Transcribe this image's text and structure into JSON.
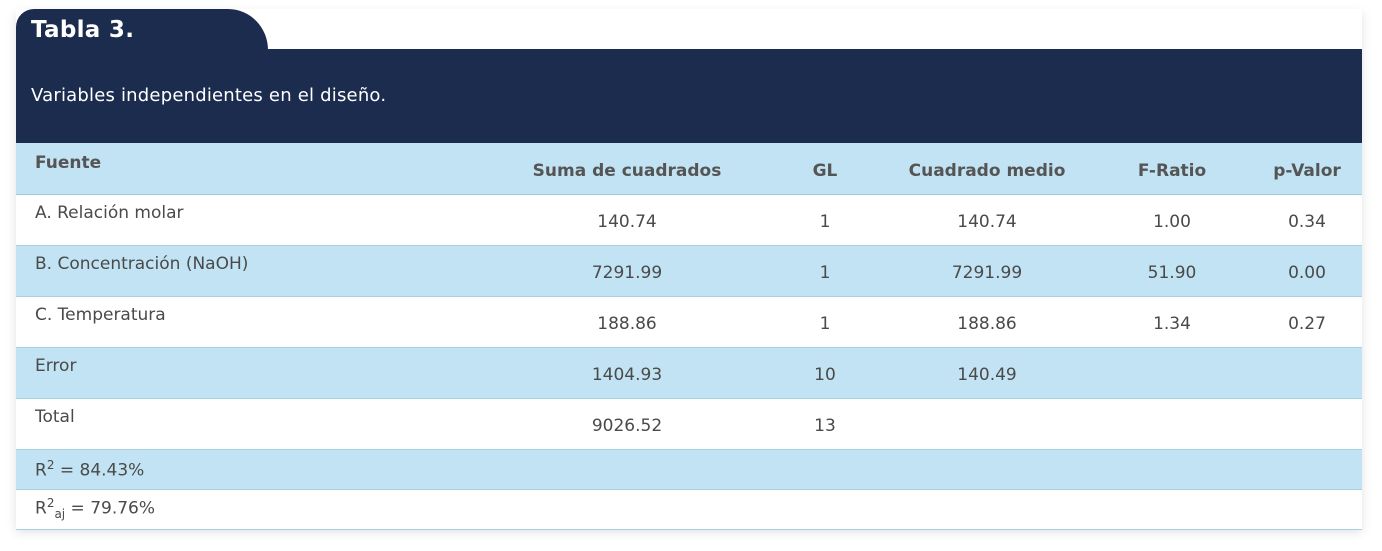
{
  "table_label": "Tabla 3.",
  "caption": "Variables independientes en el diseño.",
  "columns": [
    "Fuente",
    "Suma de cuadrados",
    "GL",
    "Cuadrado medio",
    "F-Ratio",
    "p-Valor"
  ],
  "rows": [
    {
      "fuente": "A. Relación molar",
      "suma": "140.74",
      "gl": "1",
      "cuadrado": "140.74",
      "f": "1.00",
      "p": "0.34"
    },
    {
      "fuente": "B. Concentración (NaOH)",
      "suma": "7291.99",
      "gl": "1",
      "cuadrado": "7291.99",
      "f": "51.90",
      "p": "0.00"
    },
    {
      "fuente": "C. Temperatura",
      "suma": "188.86",
      "gl": "1",
      "cuadrado": "188.86",
      "f": "1.34",
      "p": "0.27"
    },
    {
      "fuente": "Error",
      "suma": "1404.93",
      "gl": "10",
      "cuadrado": "140.49",
      "f": "",
      "p": ""
    },
    {
      "fuente": "Total",
      "suma": "9026.52",
      "gl": "13",
      "cuadrado": "",
      "f": "",
      "p": ""
    }
  ],
  "footer": {
    "r2_symbol": "R",
    "r2_sup": "2",
    "r2_value": " = 84.43%",
    "r2aj_symbol": "R",
    "r2aj_sup": "2",
    "r2aj_sub": "aj",
    "r2aj_value": " = 79.76%"
  },
  "colors": {
    "header": "#1c2c4f",
    "stripe": "#c1e3f3"
  }
}
